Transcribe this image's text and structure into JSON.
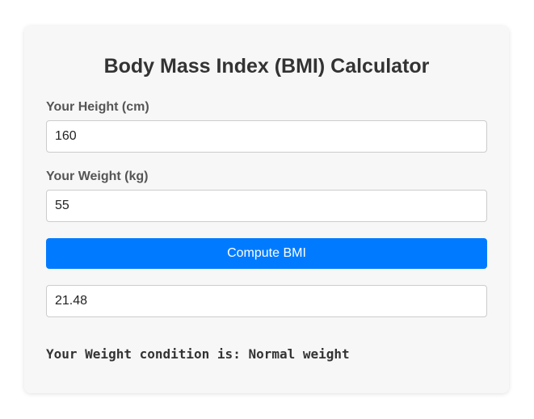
{
  "app": {
    "title": "Body Mass Index (BMI) Calculator"
  },
  "form": {
    "height_label": "Your Height (cm)",
    "height_value": "160",
    "weight_label": "Your Weight (kg)",
    "weight_value": "55",
    "compute_label": "Compute BMI",
    "result_value": "21.48"
  },
  "result": {
    "condition_text": "Your Weight condition is: Normal weight"
  },
  "colors": {
    "accent": "#007bff",
    "card_background": "#f7f7f7",
    "text": "#333333"
  }
}
